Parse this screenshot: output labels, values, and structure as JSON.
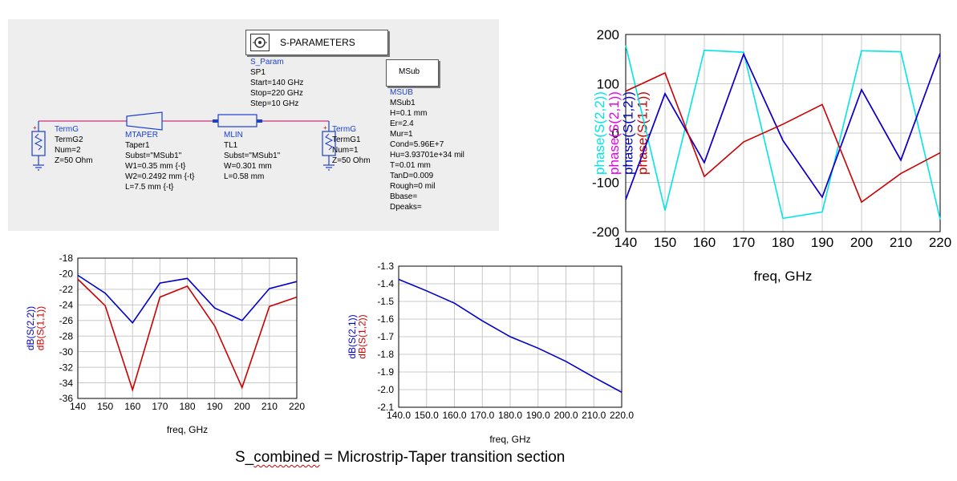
{
  "schematic": {
    "sparams": {
      "title": "S-PARAMETERS",
      "lines": [
        "S_Param",
        "SP1",
        "Start=140 GHz",
        "Stop=220 GHz",
        "Step=10 GHz"
      ]
    },
    "msub": {
      "box_label": "MSub",
      "lines": [
        "MSUB",
        "MSub1",
        "H=0.1 mm",
        "Er=2.4",
        "Mur=1",
        "Cond=5.96E+7",
        "Hu=3.93701e+34 mil",
        "T=0.01 mm",
        "TanD=0.009",
        "Rough=0 mil",
        "Bbase=",
        "Dpeaks="
      ]
    },
    "termg2": {
      "lines": [
        "TermG",
        "TermG2",
        "Num=2",
        "Z=50 Ohm"
      ]
    },
    "taper": {
      "lines": [
        "MTAPER",
        "Taper1",
        "Subst=\"MSub1\"",
        "W1=0.35 mm {-t}",
        "W2=0.2492 mm {-t}",
        "L=7.5 mm {-t}"
      ]
    },
    "mlin": {
      "lines": [
        "MLIN",
        "TL1",
        "Subst=\"MSub1\"",
        "W=0.301 mm",
        "L=0.58 mm"
      ]
    },
    "termg1": {
      "lines": [
        "TermG",
        "TermG1",
        "Num=1",
        "Z=50 Ohm"
      ]
    }
  },
  "chart_data": [
    {
      "type": "line",
      "xlabel": "freq, GHz",
      "ylabels": [
        {
          "text": "phase(S(2,2))",
          "color": "#00e5e5"
        },
        {
          "text": "phase(S(2,1))",
          "color": "#e600e6"
        },
        {
          "text": "phase(S(1,2))",
          "color": "#0000cc"
        },
        {
          "text": "phase(S(1,1))",
          "color": "#cc0000"
        }
      ],
      "xlim": [
        140,
        220
      ],
      "ylim": [
        -200,
        200
      ],
      "xticks": [
        140,
        150,
        160,
        170,
        180,
        190,
        200,
        210,
        220
      ],
      "yticks": [
        200,
        100,
        0,
        -100,
        -200
      ],
      "grid": true,
      "x": [
        140,
        150,
        160,
        170,
        180,
        190,
        200,
        210,
        220
      ],
      "series": [
        {
          "color": "#00e5e5",
          "values": [
            178,
            -157,
            168,
            164,
            -173,
            -160,
            167,
            165,
            -175
          ]
        },
        {
          "color": "#e600e6",
          "values": [
            -135,
            80,
            -60,
            160,
            -15,
            -130,
            88,
            -55,
            162
          ]
        },
        {
          "color": "#0000cc",
          "values": [
            -135,
            80,
            -60,
            160,
            -15,
            -130,
            88,
            -55,
            162
          ]
        },
        {
          "color": "#cc0000",
          "values": [
            85,
            122,
            -88,
            -18,
            18,
            58,
            -140,
            -82,
            -40
          ]
        }
      ]
    },
    {
      "type": "line",
      "xlabel": "freq, GHz",
      "ylabels": [
        {
          "text": "dB(S(2,2))",
          "color": "#0000cc"
        },
        {
          "text": "dB(S(1,1))",
          "color": "#cc0000"
        }
      ],
      "xlim": [
        140,
        220
      ],
      "ylim": [
        -36,
        -18
      ],
      "xticks": [
        140,
        150,
        160,
        170,
        180,
        190,
        200,
        210,
        220
      ],
      "yticks": [
        -18,
        -20,
        -22,
        -24,
        -26,
        -28,
        -30,
        -32,
        -34,
        -36
      ],
      "grid": true,
      "x": [
        140,
        150,
        160,
        170,
        180,
        190,
        200,
        210,
        220
      ],
      "series": [
        {
          "color": "#0000cc",
          "values": [
            -20.2,
            -22.5,
            -26.3,
            -21.2,
            -20.6,
            -24.4,
            -26.0,
            -21.9,
            -21.0
          ]
        },
        {
          "color": "#cc0000",
          "values": [
            -20.7,
            -24.1,
            -34.9,
            -23.0,
            -21.6,
            -26.7,
            -34.6,
            -24.2,
            -23.0
          ]
        }
      ]
    },
    {
      "type": "line",
      "xlabel": "freq, GHz",
      "ylabels": [
        {
          "text": "dB(S(2,1))",
          "color": "#0000cc"
        },
        {
          "text": "dB(S(1,2))",
          "color": "#cc0000"
        }
      ],
      "xlim": [
        140,
        220
      ],
      "ylim": [
        -2.1,
        -1.3
      ],
      "xticks": [
        140,
        150,
        160,
        170,
        180,
        190,
        200,
        210,
        220
      ],
      "yticks": [
        -1.3,
        -1.4,
        -1.5,
        -1.6,
        -1.7,
        -1.8,
        -1.9,
        -2.0,
        -2.1
      ],
      "grid": true,
      "x": [
        140,
        150,
        160,
        170,
        180,
        190,
        200,
        210,
        220
      ],
      "series": [
        {
          "color": "#0000cc",
          "values": [
            -1.375,
            -1.44,
            -1.51,
            -1.61,
            -1.7,
            -1.765,
            -1.84,
            -1.93,
            -2.015
          ]
        }
      ]
    }
  ],
  "caption": {
    "prefix": "S_",
    "squig": "combined",
    "rest": " = Microstrip-Taper transition section"
  }
}
